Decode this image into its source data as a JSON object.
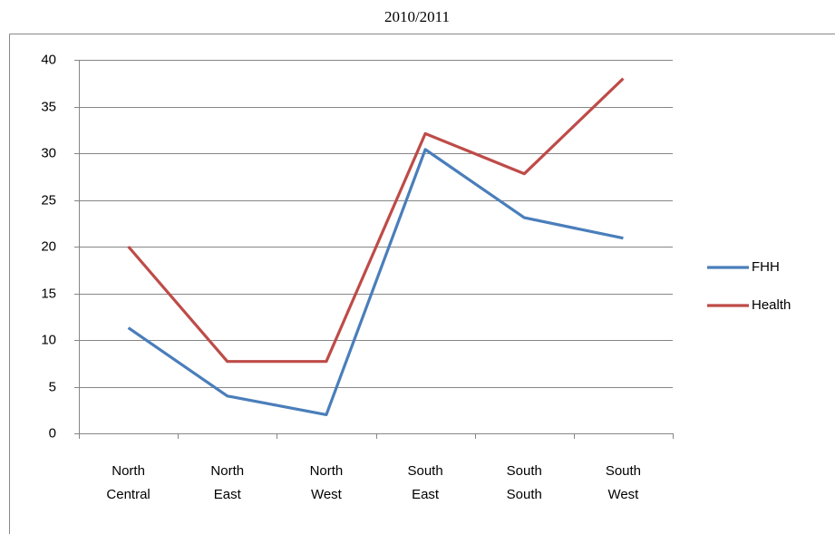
{
  "chart_data": {
    "type": "line",
    "title": "2010/2011",
    "categories": [
      "North Central",
      "North East",
      "North West",
      "South East",
      "South South",
      "South West"
    ],
    "series": [
      {
        "name": "FHH",
        "color": "#4a7ebb",
        "values": [
          11.3,
          4,
          2,
          30.4,
          23.1,
          20.9
        ]
      },
      {
        "name": "Health",
        "color": "#be4b48",
        "values": [
          20,
          7.7,
          7.7,
          32.1,
          27.8,
          38
        ]
      }
    ],
    "ylim": [
      0,
      40
    ],
    "yticks": [
      0,
      5,
      10,
      15,
      20,
      25,
      30,
      35,
      40
    ],
    "grid": true,
    "legend": "right"
  }
}
